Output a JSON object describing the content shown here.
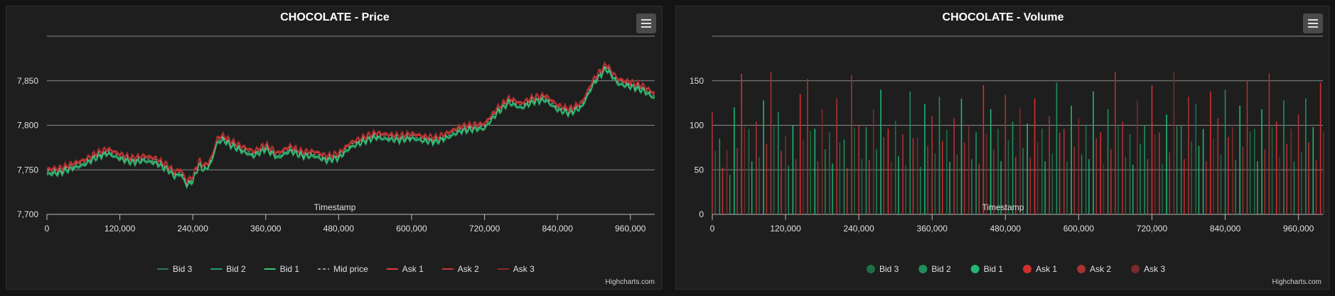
{
  "charts": [
    {
      "title": "CHOCOLATE - Price",
      "xlabel": "Timestamp",
      "credit": "Highcharts.com",
      "menu_icon": "hamburger-menu-icon"
    },
    {
      "title": "CHOCOLATE - Volume",
      "xlabel": "Timestamp",
      "credit": "Highcharts.com",
      "menu_icon": "hamburger-menu-icon"
    }
  ],
  "chart_data": [
    {
      "type": "line",
      "title": "CHOCOLATE - Price",
      "xlabel": "Timestamp",
      "ylabel": "",
      "xlim": [
        0,
        1000000
      ],
      "ylim": [
        7700,
        7900
      ],
      "xticks": [
        0,
        120000,
        240000,
        360000,
        480000,
        600000,
        720000,
        840000,
        960000
      ],
      "xtick_labels": [
        "0",
        "120,000",
        "240,000",
        "360,000",
        "480,000",
        "600,000",
        "720,000",
        "840,000",
        "960,000"
      ],
      "yticks": [
        7700,
        7750,
        7800,
        7850
      ],
      "ytick_labels": [
        "7,700",
        "7,750",
        "7,800",
        "7,850"
      ],
      "grid": true,
      "legend_position": "bottom-center",
      "series": [
        {
          "name": "Bid 3",
          "color": "#2e7d57",
          "dash": false
        },
        {
          "name": "Bid 2",
          "color": "#27a06a",
          "dash": false
        },
        {
          "name": "Bid 1",
          "color": "#2ecc71",
          "dash": false
        },
        {
          "name": "Mid price",
          "color": "#9a9a9a",
          "dash": true
        },
        {
          "name": "Ask 1",
          "color": "#e53935",
          "dash": false
        },
        {
          "name": "Ask 2",
          "color": "#c23b35",
          "dash": false
        },
        {
          "name": "Ask 3",
          "color": "#8e2b2b",
          "dash": false
        }
      ],
      "mid_price": {
        "x": [
          0,
          20000,
          40000,
          60000,
          80000,
          100000,
          120000,
          140000,
          160000,
          180000,
          200000,
          210000,
          220000,
          230000,
          240000,
          250000,
          260000,
          270000,
          280000,
          290000,
          300000,
          320000,
          340000,
          360000,
          380000,
          400000,
          420000,
          440000,
          460000,
          480000,
          500000,
          520000,
          540000,
          560000,
          580000,
          600000,
          620000,
          640000,
          660000,
          680000,
          700000,
          720000,
          740000,
          760000,
          780000,
          800000,
          820000,
          840000,
          860000,
          880000,
          900000,
          920000,
          940000,
          960000,
          980000,
          1000000
        ],
        "y": [
          7748,
          7749,
          7754,
          7758,
          7766,
          7771,
          7765,
          7761,
          7763,
          7760,
          7752,
          7745,
          7748,
          7735,
          7740,
          7758,
          7752,
          7760,
          7783,
          7786,
          7781,
          7774,
          7768,
          7776,
          7766,
          7774,
          7768,
          7768,
          7763,
          7766,
          7778,
          7784,
          7789,
          7787,
          7786,
          7788,
          7785,
          7784,
          7789,
          7796,
          7798,
          7799,
          7816,
          7828,
          7822,
          7829,
          7831,
          7820,
          7816,
          7823,
          7850,
          7866,
          7849,
          7846,
          7842,
          7833
        ]
      }
    },
    {
      "type": "bar",
      "title": "CHOCOLATE - Volume",
      "xlabel": "Timestamp",
      "ylabel": "",
      "xlim": [
        0,
        1000000
      ],
      "ylim": [
        0,
        200
      ],
      "xticks": [
        0,
        120000,
        240000,
        360000,
        480000,
        600000,
        720000,
        840000,
        960000
      ],
      "xtick_labels": [
        "0",
        "120,000",
        "240,000",
        "360,000",
        "480,000",
        "600,000",
        "720,000",
        "840,000",
        "960,000"
      ],
      "yticks": [
        0,
        50,
        100,
        150
      ],
      "ytick_labels": [
        "0",
        "50",
        "100",
        "150"
      ],
      "grid": true,
      "legend_position": "bottom-center",
      "series": [
        {
          "name": "Bid 3",
          "color": "#1e6e45"
        },
        {
          "name": "Bid 2",
          "color": "#1f8f5a"
        },
        {
          "name": "Bid 1",
          "color": "#22b573"
        },
        {
          "name": "Ask 1",
          "color": "#d32f2f"
        },
        {
          "name": "Ask 2",
          "color": "#a83232"
        },
        {
          "name": "Ask 3",
          "color": "#7a2a2a"
        }
      ],
      "bars": {
        "x": [
          0,
          12000,
          24000,
          36000,
          48000,
          60000,
          72000,
          84000,
          96000,
          108000,
          120000,
          132000,
          144000,
          156000,
          168000,
          180000,
          192000,
          204000,
          216000,
          228000,
          240000,
          252000,
          264000,
          276000,
          288000,
          300000,
          312000,
          324000,
          336000,
          348000,
          360000,
          372000,
          384000,
          396000,
          408000,
          420000,
          432000,
          444000,
          456000,
          468000,
          480000,
          492000,
          504000,
          516000,
          528000,
          540000,
          552000,
          564000,
          576000,
          588000,
          600000,
          612000,
          624000,
          636000,
          648000,
          660000,
          672000,
          684000,
          696000,
          708000,
          720000,
          732000,
          744000,
          756000,
          768000,
          780000,
          792000,
          804000,
          816000,
          828000,
          840000,
          852000,
          864000,
          876000,
          888000,
          900000,
          912000,
          924000,
          936000,
          948000,
          960000,
          972000,
          984000,
          996000
        ],
        "y": [
          115,
          85,
          72,
          120,
          158,
          96,
          104,
          128,
          160,
          115,
          88,
          100,
          135,
          152,
          96,
          118,
          92,
          130,
          84,
          156,
          100,
          98,
          118,
          140,
          96,
          105,
          90,
          138,
          86,
          124,
          110,
          132,
          95,
          108,
          130,
          100,
          92,
          145,
          118,
          96,
          134,
          104,
          120,
          102,
          130,
          96,
          110,
          148,
          96,
          122,
          108,
          100,
          138,
          92,
          118,
          160,
          104,
          90,
          128,
          100,
          145,
          92,
          112,
          160,
          100,
          132,
          124,
          96,
          138,
          108,
          140,
          98,
          122,
          150,
          96,
          118,
          158,
          104,
          128,
          96,
          112,
          130,
          98,
          148
        ],
        "series_index": [
          4,
          1,
          5,
          2,
          3,
          0,
          4,
          2,
          4,
          1,
          5,
          2,
          3,
          4,
          2,
          5,
          0,
          4,
          1,
          4,
          4,
          1,
          5,
          2,
          3,
          0,
          4,
          1,
          5,
          2,
          4,
          1,
          0,
          4,
          2,
          5,
          1,
          3,
          2,
          0,
          4,
          1,
          5,
          2,
          3,
          0,
          4,
          1,
          4,
          2,
          5,
          0,
          2,
          3,
          1,
          4,
          4,
          0,
          5,
          1,
          3,
          4,
          2,
          5,
          1,
          4,
          0,
          2,
          3,
          4,
          1,
          5,
          2,
          4,
          0,
          2,
          4,
          3,
          1,
          5,
          4,
          1,
          2,
          3
        ]
      }
    }
  ]
}
